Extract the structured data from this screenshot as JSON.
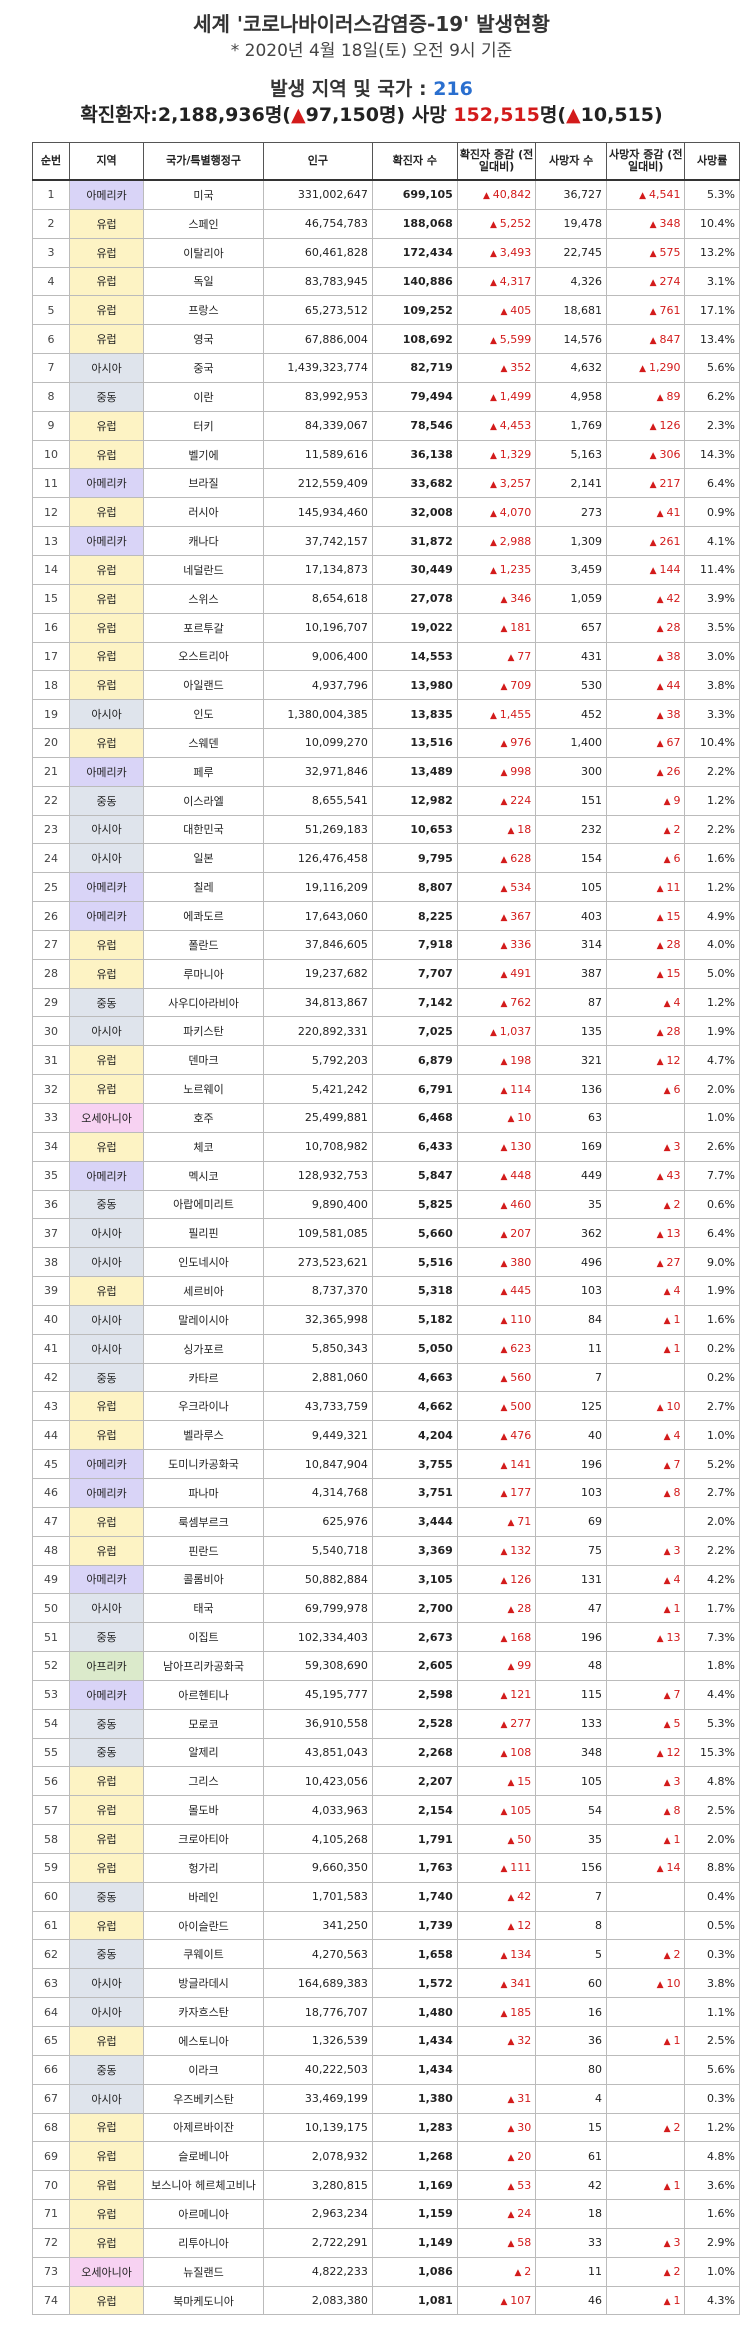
{
  "header": {
    "title": "세계 '코로나바이러스감염증-19' 발생현황",
    "subtitle": "* 2020년 4월 18일(토) 오전 9시 기준",
    "region_label": "발생 지역 및 국가 : ",
    "region_count": "216",
    "confirmed_label": "확진환자:2,188,936명(",
    "confirmed_delta": "97,150",
    "death_label": "명) 사망 ",
    "death_total": "152,515",
    "death_unit": "명(",
    "death_delta": "10,515",
    "close": ")"
  },
  "columns": [
    "순번",
    "지역",
    "국가/특별행정구",
    "인구",
    "확진자 수",
    "확진자 증감 (전일대비)",
    "사망자 수",
    "사망자 증감 (전일대비)",
    "사망률"
  ],
  "rows": [
    {
      "no": "1",
      "region": "아메리카",
      "country": "미국",
      "pop": "331,002,647",
      "cases": "699,105",
      "cd": "40,842",
      "deaths": "36,727",
      "dd": "4,541",
      "rate": "5.3%"
    },
    {
      "no": "2",
      "region": "유럽",
      "country": "스페인",
      "pop": "46,754,783",
      "cases": "188,068",
      "cd": "5,252",
      "deaths": "19,478",
      "dd": "348",
      "rate": "10.4%"
    },
    {
      "no": "3",
      "region": "유럽",
      "country": "이탈리아",
      "pop": "60,461,828",
      "cases": "172,434",
      "cd": "3,493",
      "deaths": "22,745",
      "dd": "575",
      "rate": "13.2%"
    },
    {
      "no": "4",
      "region": "유럽",
      "country": "독일",
      "pop": "83,783,945",
      "cases": "140,886",
      "cd": "4,317",
      "deaths": "4,326",
      "dd": "274",
      "rate": "3.1%"
    },
    {
      "no": "5",
      "region": "유럽",
      "country": "프랑스",
      "pop": "65,273,512",
      "cases": "109,252",
      "cd": "405",
      "deaths": "18,681",
      "dd": "761",
      "rate": "17.1%"
    },
    {
      "no": "6",
      "region": "유럽",
      "country": "영국",
      "pop": "67,886,004",
      "cases": "108,692",
      "cd": "5,599",
      "deaths": "14,576",
      "dd": "847",
      "rate": "13.4%"
    },
    {
      "no": "7",
      "region": "아시아",
      "country": "중국",
      "pop": "1,439,323,774",
      "cases": "82,719",
      "cd": "352",
      "deaths": "4,632",
      "dd": "1,290",
      "rate": "5.6%"
    },
    {
      "no": "8",
      "region": "중동",
      "country": "이란",
      "pop": "83,992,953",
      "cases": "79,494",
      "cd": "1,499",
      "deaths": "4,958",
      "dd": "89",
      "rate": "6.2%"
    },
    {
      "no": "9",
      "region": "유럽",
      "country": "터키",
      "pop": "84,339,067",
      "cases": "78,546",
      "cd": "4,453",
      "deaths": "1,769",
      "dd": "126",
      "rate": "2.3%"
    },
    {
      "no": "10",
      "region": "유럽",
      "country": "벨기에",
      "pop": "11,589,616",
      "cases": "36,138",
      "cd": "1,329",
      "deaths": "5,163",
      "dd": "306",
      "rate": "14.3%"
    },
    {
      "no": "11",
      "region": "아메리카",
      "country": "브라질",
      "pop": "212,559,409",
      "cases": "33,682",
      "cd": "3,257",
      "deaths": "2,141",
      "dd": "217",
      "rate": "6.4%"
    },
    {
      "no": "12",
      "region": "유럽",
      "country": "러시아",
      "pop": "145,934,460",
      "cases": "32,008",
      "cd": "4,070",
      "deaths": "273",
      "dd": "41",
      "rate": "0.9%"
    },
    {
      "no": "13",
      "region": "아메리카",
      "country": "캐나다",
      "pop": "37,742,157",
      "cases": "31,872",
      "cd": "2,988",
      "deaths": "1,309",
      "dd": "261",
      "rate": "4.1%"
    },
    {
      "no": "14",
      "region": "유럽",
      "country": "네덜란드",
      "pop": "17,134,873",
      "cases": "30,449",
      "cd": "1,235",
      "deaths": "3,459",
      "dd": "144",
      "rate": "11.4%"
    },
    {
      "no": "15",
      "region": "유럽",
      "country": "스위스",
      "pop": "8,654,618",
      "cases": "27,078",
      "cd": "346",
      "deaths": "1,059",
      "dd": "42",
      "rate": "3.9%"
    },
    {
      "no": "16",
      "region": "유럽",
      "country": "포르투갈",
      "pop": "10,196,707",
      "cases": "19,022",
      "cd": "181",
      "deaths": "657",
      "dd": "28",
      "rate": "3.5%"
    },
    {
      "no": "17",
      "region": "유럽",
      "country": "오스트리아",
      "pop": "9,006,400",
      "cases": "14,553",
      "cd": "77",
      "deaths": "431",
      "dd": "38",
      "rate": "3.0%"
    },
    {
      "no": "18",
      "region": "유럽",
      "country": "아일랜드",
      "pop": "4,937,796",
      "cases": "13,980",
      "cd": "709",
      "deaths": "530",
      "dd": "44",
      "rate": "3.8%"
    },
    {
      "no": "19",
      "region": "아시아",
      "country": "인도",
      "pop": "1,380,004,385",
      "cases": "13,835",
      "cd": "1,455",
      "deaths": "452",
      "dd": "38",
      "rate": "3.3%"
    },
    {
      "no": "20",
      "region": "유럽",
      "country": "스웨덴",
      "pop": "10,099,270",
      "cases": "13,516",
      "cd": "976",
      "deaths": "1,400",
      "dd": "67",
      "rate": "10.4%"
    },
    {
      "no": "21",
      "region": "아메리카",
      "country": "페루",
      "pop": "32,971,846",
      "cases": "13,489",
      "cd": "998",
      "deaths": "300",
      "dd": "26",
      "rate": "2.2%"
    },
    {
      "no": "22",
      "region": "중동",
      "country": "이스라엘",
      "pop": "8,655,541",
      "cases": "12,982",
      "cd": "224",
      "deaths": "151",
      "dd": "9",
      "rate": "1.2%"
    },
    {
      "no": "23",
      "region": "아시아",
      "country": "대한민국",
      "pop": "51,269,183",
      "cases": "10,653",
      "cd": "18",
      "deaths": "232",
      "dd": "2",
      "rate": "2.2%"
    },
    {
      "no": "24",
      "region": "아시아",
      "country": "일본",
      "pop": "126,476,458",
      "cases": "9,795",
      "cd": "628",
      "deaths": "154",
      "dd": "6",
      "rate": "1.6%"
    },
    {
      "no": "25",
      "region": "아메리카",
      "country": "칠레",
      "pop": "19,116,209",
      "cases": "8,807",
      "cd": "534",
      "deaths": "105",
      "dd": "11",
      "rate": "1.2%"
    },
    {
      "no": "26",
      "region": "아메리카",
      "country": "에콰도르",
      "pop": "17,643,060",
      "cases": "8,225",
      "cd": "367",
      "deaths": "403",
      "dd": "15",
      "rate": "4.9%"
    },
    {
      "no": "27",
      "region": "유럽",
      "country": "폴란드",
      "pop": "37,846,605",
      "cases": "7,918",
      "cd": "336",
      "deaths": "314",
      "dd": "28",
      "rate": "4.0%"
    },
    {
      "no": "28",
      "region": "유럽",
      "country": "루마니아",
      "pop": "19,237,682",
      "cases": "7,707",
      "cd": "491",
      "deaths": "387",
      "dd": "15",
      "rate": "5.0%"
    },
    {
      "no": "29",
      "region": "중동",
      "country": "사우디아라비아",
      "pop": "34,813,867",
      "cases": "7,142",
      "cd": "762",
      "deaths": "87",
      "dd": "4",
      "rate": "1.2%"
    },
    {
      "no": "30",
      "region": "아시아",
      "country": "파키스탄",
      "pop": "220,892,331",
      "cases": "7,025",
      "cd": "1,037",
      "deaths": "135",
      "dd": "28",
      "rate": "1.9%"
    },
    {
      "no": "31",
      "region": "유럽",
      "country": "덴마크",
      "pop": "5,792,203",
      "cases": "6,879",
      "cd": "198",
      "deaths": "321",
      "dd": "12",
      "rate": "4.7%"
    },
    {
      "no": "32",
      "region": "유럽",
      "country": "노르웨이",
      "pop": "5,421,242",
      "cases": "6,791",
      "cd": "114",
      "deaths": "136",
      "dd": "6",
      "rate": "2.0%"
    },
    {
      "no": "33",
      "region": "오세아니아",
      "country": "호주",
      "pop": "25,499,881",
      "cases": "6,468",
      "cd": "10",
      "deaths": "63",
      "dd": "",
      "rate": "1.0%"
    },
    {
      "no": "34",
      "region": "유럽",
      "country": "체코",
      "pop": "10,708,982",
      "cases": "6,433",
      "cd": "130",
      "deaths": "169",
      "dd": "3",
      "rate": "2.6%"
    },
    {
      "no": "35",
      "region": "아메리카",
      "country": "멕시코",
      "pop": "128,932,753",
      "cases": "5,847",
      "cd": "448",
      "deaths": "449",
      "dd": "43",
      "rate": "7.7%"
    },
    {
      "no": "36",
      "region": "중동",
      "country": "아랍에미리트",
      "pop": "9,890,400",
      "cases": "5,825",
      "cd": "460",
      "deaths": "35",
      "dd": "2",
      "rate": "0.6%"
    },
    {
      "no": "37",
      "region": "아시아",
      "country": "필리핀",
      "pop": "109,581,085",
      "cases": "5,660",
      "cd": "207",
      "deaths": "362",
      "dd": "13",
      "rate": "6.4%"
    },
    {
      "no": "38",
      "region": "아시아",
      "country": "인도네시아",
      "pop": "273,523,621",
      "cases": "5,516",
      "cd": "380",
      "deaths": "496",
      "dd": "27",
      "rate": "9.0%"
    },
    {
      "no": "39",
      "region": "유럽",
      "country": "세르비아",
      "pop": "8,737,370",
      "cases": "5,318",
      "cd": "445",
      "deaths": "103",
      "dd": "4",
      "rate": "1.9%"
    },
    {
      "no": "40",
      "region": "아시아",
      "country": "말레이시아",
      "pop": "32,365,998",
      "cases": "5,182",
      "cd": "110",
      "deaths": "84",
      "dd": "1",
      "rate": "1.6%"
    },
    {
      "no": "41",
      "region": "아시아",
      "country": "싱가포르",
      "pop": "5,850,343",
      "cases": "5,050",
      "cd": "623",
      "deaths": "11",
      "dd": "1",
      "rate": "0.2%"
    },
    {
      "no": "42",
      "region": "중동",
      "country": "카타르",
      "pop": "2,881,060",
      "cases": "4,663",
      "cd": "560",
      "deaths": "7",
      "dd": "",
      "rate": "0.2%"
    },
    {
      "no": "43",
      "region": "유럽",
      "country": "우크라이나",
      "pop": "43,733,759",
      "cases": "4,662",
      "cd": "500",
      "deaths": "125",
      "dd": "10",
      "rate": "2.7%"
    },
    {
      "no": "44",
      "region": "유럽",
      "country": "벨라루스",
      "pop": "9,449,321",
      "cases": "4,204",
      "cd": "476",
      "deaths": "40",
      "dd": "4",
      "rate": "1.0%"
    },
    {
      "no": "45",
      "region": "아메리카",
      "country": "도미니카공화국",
      "pop": "10,847,904",
      "cases": "3,755",
      "cd": "141",
      "deaths": "196",
      "dd": "7",
      "rate": "5.2%"
    },
    {
      "no": "46",
      "region": "아메리카",
      "country": "파나마",
      "pop": "4,314,768",
      "cases": "3,751",
      "cd": "177",
      "deaths": "103",
      "dd": "8",
      "rate": "2.7%"
    },
    {
      "no": "47",
      "region": "유럽",
      "country": "룩셈부르크",
      "pop": "625,976",
      "cases": "3,444",
      "cd": "71",
      "deaths": "69",
      "dd": "",
      "rate": "2.0%"
    },
    {
      "no": "48",
      "region": "유럽",
      "country": "핀란드",
      "pop": "5,540,718",
      "cases": "3,369",
      "cd": "132",
      "deaths": "75",
      "dd": "3",
      "rate": "2.2%"
    },
    {
      "no": "49",
      "region": "아메리카",
      "country": "콜롬비아",
      "pop": "50,882,884",
      "cases": "3,105",
      "cd": "126",
      "deaths": "131",
      "dd": "4",
      "rate": "4.2%"
    },
    {
      "no": "50",
      "region": "아시아",
      "country": "태국",
      "pop": "69,799,978",
      "cases": "2,700",
      "cd": "28",
      "deaths": "47",
      "dd": "1",
      "rate": "1.7%"
    },
    {
      "no": "51",
      "region": "중동",
      "country": "이집트",
      "pop": "102,334,403",
      "cases": "2,673",
      "cd": "168",
      "deaths": "196",
      "dd": "13",
      "rate": "7.3%"
    },
    {
      "no": "52",
      "region": "아프리카",
      "country": "남아프리카공화국",
      "pop": "59,308,690",
      "cases": "2,605",
      "cd": "99",
      "deaths": "48",
      "dd": "",
      "rate": "1.8%"
    },
    {
      "no": "53",
      "region": "아메리카",
      "country": "아르헨티나",
      "pop": "45,195,777",
      "cases": "2,598",
      "cd": "121",
      "deaths": "115",
      "dd": "7",
      "rate": "4.4%"
    },
    {
      "no": "54",
      "region": "중동",
      "country": "모로코",
      "pop": "36,910,558",
      "cases": "2,528",
      "cd": "277",
      "deaths": "133",
      "dd": "5",
      "rate": "5.3%"
    },
    {
      "no": "55",
      "region": "중동",
      "country": "알제리",
      "pop": "43,851,043",
      "cases": "2,268",
      "cd": "108",
      "deaths": "348",
      "dd": "12",
      "rate": "15.3%"
    },
    {
      "no": "56",
      "region": "유럽",
      "country": "그리스",
      "pop": "10,423,056",
      "cases": "2,207",
      "cd": "15",
      "deaths": "105",
      "dd": "3",
      "rate": "4.8%"
    },
    {
      "no": "57",
      "region": "유럽",
      "country": "몰도바",
      "pop": "4,033,963",
      "cases": "2,154",
      "cd": "105",
      "deaths": "54",
      "dd": "8",
      "rate": "2.5%"
    },
    {
      "no": "58",
      "region": "유럽",
      "country": "크로아티아",
      "pop": "4,105,268",
      "cases": "1,791",
      "cd": "50",
      "deaths": "35",
      "dd": "1",
      "rate": "2.0%"
    },
    {
      "no": "59",
      "region": "유럽",
      "country": "헝가리",
      "pop": "9,660,350",
      "cases": "1,763",
      "cd": "111",
      "deaths": "156",
      "dd": "14",
      "rate": "8.8%"
    },
    {
      "no": "60",
      "region": "중동",
      "country": "바레인",
      "pop": "1,701,583",
      "cases": "1,740",
      "cd": "42",
      "deaths": "7",
      "dd": "",
      "rate": "0.4%"
    },
    {
      "no": "61",
      "region": "유럽",
      "country": "아이슬란드",
      "pop": "341,250",
      "cases": "1,739",
      "cd": "12",
      "deaths": "8",
      "dd": "",
      "rate": "0.5%"
    },
    {
      "no": "62",
      "region": "중동",
      "country": "쿠웨이트",
      "pop": "4,270,563",
      "cases": "1,658",
      "cd": "134",
      "deaths": "5",
      "dd": "2",
      "rate": "0.3%"
    },
    {
      "no": "63",
      "region": "아시아",
      "country": "방글라데시",
      "pop": "164,689,383",
      "cases": "1,572",
      "cd": "341",
      "deaths": "60",
      "dd": "10",
      "rate": "3.8%"
    },
    {
      "no": "64",
      "region": "아시아",
      "country": "카자흐스탄",
      "pop": "18,776,707",
      "cases": "1,480",
      "cd": "185",
      "deaths": "16",
      "dd": "",
      "rate": "1.1%"
    },
    {
      "no": "65",
      "region": "유럽",
      "country": "에스토니아",
      "pop": "1,326,539",
      "cases": "1,434",
      "cd": "32",
      "deaths": "36",
      "dd": "1",
      "rate": "2.5%"
    },
    {
      "no": "66",
      "region": "중동",
      "country": "이라크",
      "pop": "40,222,503",
      "cases": "1,434",
      "cd": "",
      "deaths": "80",
      "dd": "",
      "rate": "5.6%"
    },
    {
      "no": "67",
      "region": "아시아",
      "country": "우즈베키스탄",
      "pop": "33,469,199",
      "cases": "1,380",
      "cd": "31",
      "deaths": "4",
      "dd": "",
      "rate": "0.3%"
    },
    {
      "no": "68",
      "region": "유럽",
      "country": "아제르바이잔",
      "pop": "10,139,175",
      "cases": "1,283",
      "cd": "30",
      "deaths": "15",
      "dd": "2",
      "rate": "1.2%"
    },
    {
      "no": "69",
      "region": "유럽",
      "country": "슬로베니아",
      "pop": "2,078,932",
      "cases": "1,268",
      "cd": "20",
      "deaths": "61",
      "dd": "",
      "rate": "4.8%"
    },
    {
      "no": "70",
      "region": "유럽",
      "country": "보스니아 헤르체고비나",
      "pop": "3,280,815",
      "cases": "1,169",
      "cd": "53",
      "deaths": "42",
      "dd": "1",
      "rate": "3.6%"
    },
    {
      "no": "71",
      "region": "유럽",
      "country": "아르메니아",
      "pop": "2,963,234",
      "cases": "1,159",
      "cd": "24",
      "deaths": "18",
      "dd": "",
      "rate": "1.6%"
    },
    {
      "no": "72",
      "region": "유럽",
      "country": "리투아니아",
      "pop": "2,722,291",
      "cases": "1,149",
      "cd": "58",
      "deaths": "33",
      "dd": "3",
      "rate": "2.9%"
    },
    {
      "no": "73",
      "region": "오세아니아",
      "country": "뉴질랜드",
      "pop": "4,822,233",
      "cases": "1,086",
      "cd": "2",
      "deaths": "11",
      "dd": "2",
      "rate": "1.0%"
    },
    {
      "no": "74",
      "region": "유럽",
      "country": "북마케도니아",
      "pop": "2,083,380",
      "cases": "1,081",
      "cd": "107",
      "deaths": "46",
      "dd": "1",
      "rate": "4.3%"
    }
  ]
}
